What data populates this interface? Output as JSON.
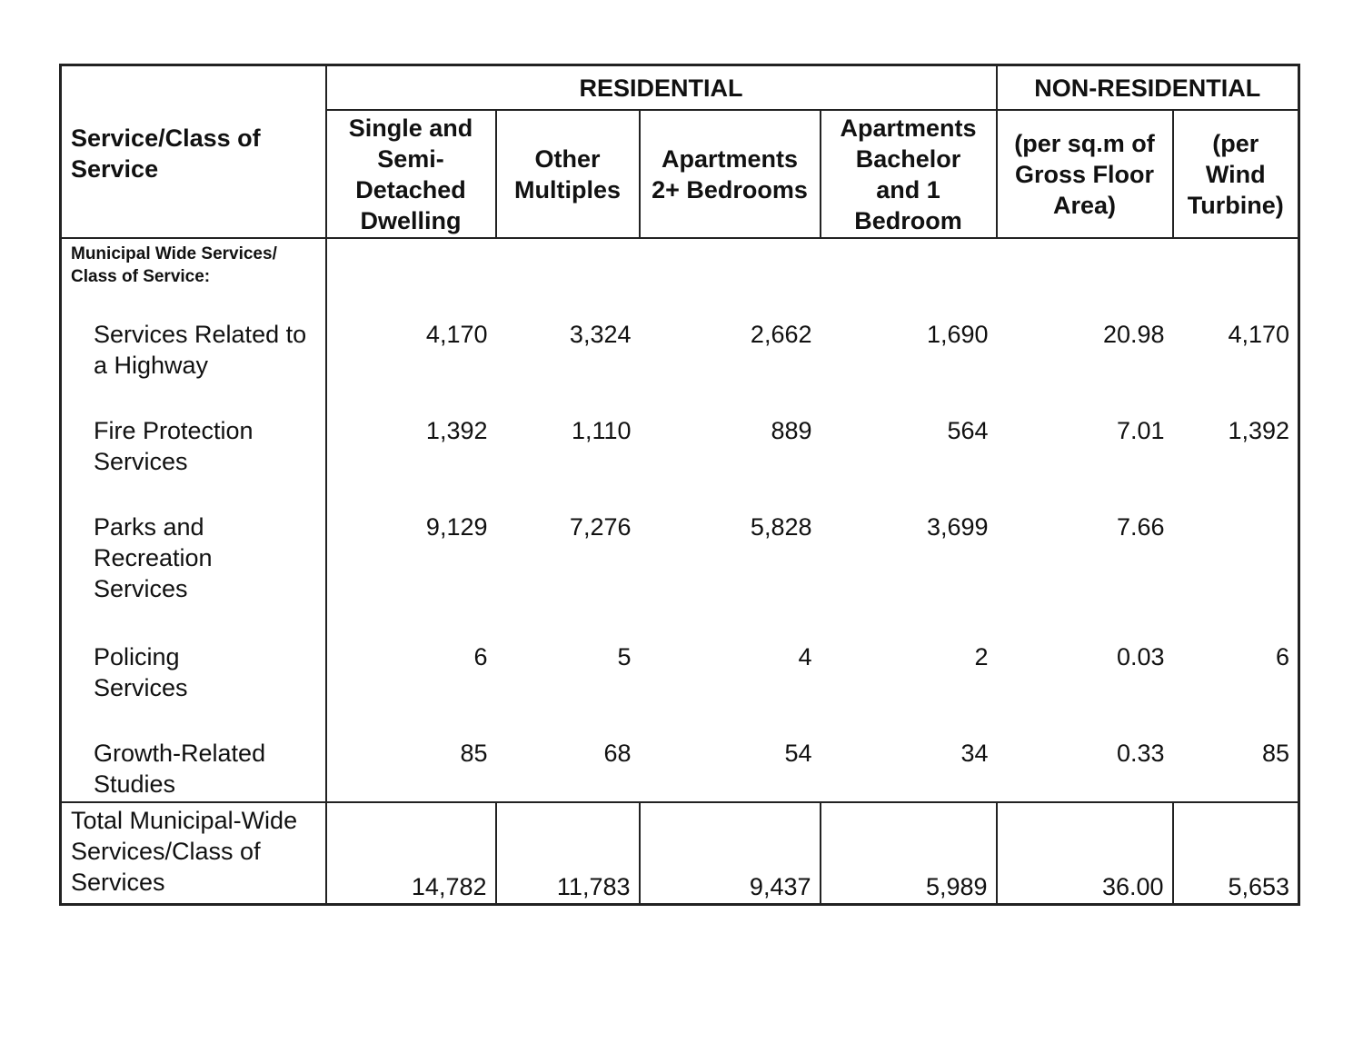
{
  "table": {
    "header": {
      "service_label": "Service/Class of Service",
      "residential_group": "RESIDENTIAL",
      "non_residential_group": "NON-RESIDENTIAL",
      "columns": [
        "Single and Semi-Detached Dwelling",
        "Other Multiples",
        "Apartments 2+ Bedrooms",
        "Apartments Bachelor and 1 Bedroom",
        "(per sq.m of Gross Floor Area)",
        "(per Wind Turbine)"
      ]
    },
    "section_label": "Municipal Wide Services/ Class of Service:",
    "rows": [
      {
        "service": "Services Related to a Highway",
        "values": [
          "4,170",
          "3,324",
          "2,662",
          "1,690",
          "20.98",
          "4,170"
        ]
      },
      {
        "service": "Fire Protection Services",
        "values": [
          "1,392",
          "1,110",
          "889",
          "564",
          "7.01",
          "1,392"
        ]
      },
      {
        "service": "Parks and Recreation Services",
        "values": [
          "9,129",
          "7,276",
          "5,828",
          "3,699",
          "7.66",
          ""
        ]
      },
      {
        "service": "Policing Services",
        "values": [
          "6",
          "5",
          "4",
          "2",
          "0.03",
          "6"
        ]
      },
      {
        "service": "Growth-Related Studies",
        "values": [
          "85",
          "68",
          "54",
          "34",
          "0.33",
          "85"
        ]
      }
    ],
    "total": {
      "label": "Total Municipal-Wide Services/Class of Services",
      "values": [
        "14,782",
        "11,783",
        "9,437",
        "5,989",
        "36.00",
        "5,653"
      ]
    }
  }
}
